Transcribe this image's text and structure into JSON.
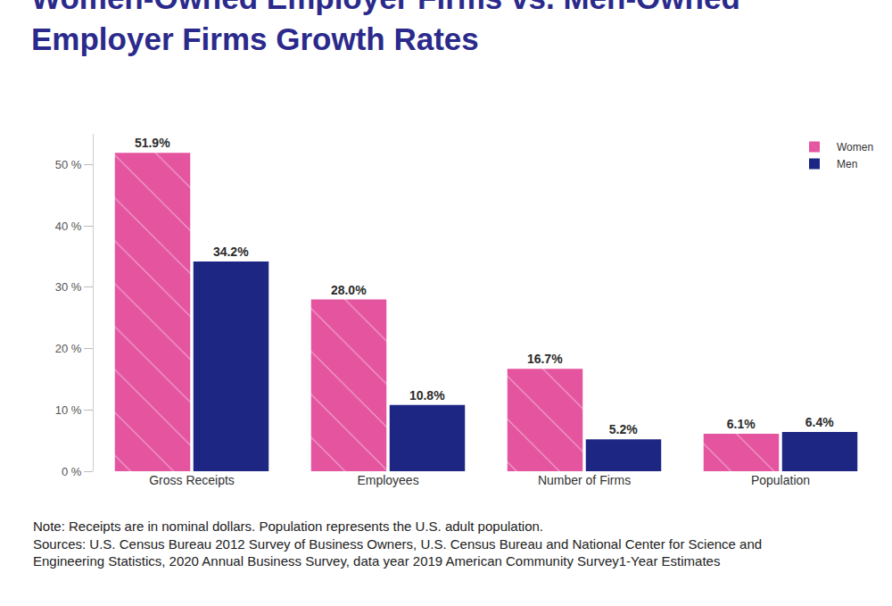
{
  "chart_data": {
    "type": "bar",
    "title": "Women-Owned Employer Firms vs. Men-Owned Employer Firms Growth Rates",
    "categories": [
      "Gross Receipts",
      "Employees",
      "Number of Firms",
      "Population"
    ],
    "series": [
      {
        "name": "Women",
        "color": "#e4549f",
        "marker": "hatch",
        "values": [
          51.9,
          28.0,
          16.7,
          6.1
        ],
        "value_labels": [
          "51.9%",
          "28.0%",
          "16.7%",
          "6.1%"
        ]
      },
      {
        "name": "Men",
        "color": "#1d2682",
        "values": [
          34.2,
          10.8,
          5.2,
          6.4
        ],
        "value_labels": [
          "34.2%",
          "10.8%",
          "5.2%",
          "6.4%"
        ]
      }
    ],
    "ylim": [
      0,
      55
    ],
    "yticks": [
      {
        "value": 0,
        "label": "0 %"
      },
      {
        "value": 10,
        "label": "10 %"
      },
      {
        "value": 20,
        "label": "20 %"
      },
      {
        "value": 30,
        "label": "30 %"
      },
      {
        "value": 40,
        "label": "40 %"
      },
      {
        "value": 50,
        "label": "50 %"
      }
    ],
    "grid": false,
    "legend": "top right",
    "data_labels": true,
    "annotations": [
      "Note: Receipts are in nominal dollars. Population represents the U.S. adult population.",
      "Sources: U.S. Census Bureau 2012 Survey of Business Owners, U.S. Census Bureau and National Center for Science and Engineering Statistics, 2020 Annual Business Survey, data year 2019 American Community Survey1-Year Estimates"
    ]
  }
}
